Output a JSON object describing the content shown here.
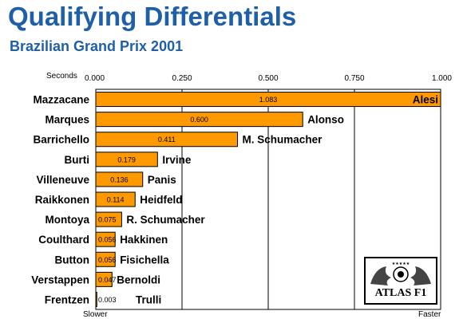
{
  "title": "Qualifying Differentials",
  "subtitle": "Brazilian Grand Prix 2001",
  "unit_label": "Seconds",
  "x_left_label": "Slower",
  "x_right_label": "Faster",
  "logo_text": "ATLAS F1",
  "colors": {
    "bar": "#ff9900",
    "title": "#1f5fa7",
    "grid": "#000000"
  },
  "chart_data": {
    "type": "bar",
    "orientation": "horizontal",
    "title": "Qualifying Differentials",
    "subtitle": "Brazilian Grand Prix 2001",
    "xlabel": "Seconds",
    "xlim": [
      0,
      1
    ],
    "xticks": [
      "0.000",
      "0.250",
      "0.500",
      "0.750",
      "1.000"
    ],
    "grid": true,
    "categories": [
      "Mazzacane",
      "Marques",
      "Barrichello",
      "Burti",
      "Villeneuve",
      "Raikkonen",
      "Montoya",
      "Coulthard",
      "Button",
      "Verstappen",
      "Frentzen"
    ],
    "opponents": [
      "Alesi",
      "Alonso",
      "M. Schumacher",
      "Irvine",
      "Panis",
      "Heidfeld",
      "R. Schumacher",
      "Hakkinen",
      "Fisichella",
      "Bernoldi",
      "Trulli"
    ],
    "values": [
      1.083,
      0.6,
      0.411,
      0.179,
      0.136,
      0.114,
      0.075,
      0.056,
      0.056,
      0.047,
      0.003
    ],
    "value_labels": [
      "1.083",
      "0.600",
      "0.411",
      "0.179",
      "0.136",
      "0.114",
      "0.075",
      "0.056",
      "0.056",
      "0.047",
      "0.003"
    ]
  }
}
